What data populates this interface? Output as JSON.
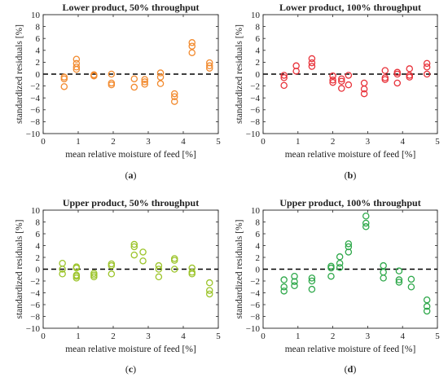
{
  "figure": {
    "panels": [
      {
        "id": "a",
        "title": "Lower product, 50% throughput",
        "caption_label": "a",
        "color": "#f28a2e"
      },
      {
        "id": "b",
        "title": "Lower product, 100% throughput",
        "caption_label": "b",
        "color": "#e8323a"
      },
      {
        "id": "c",
        "title": "Upper product, 50% throughput",
        "caption_label": "c",
        "color": "#9cc42a"
      },
      {
        "id": "d",
        "title": "Upper product, 100% throughput",
        "caption_label": "d",
        "color": "#2ea84a"
      }
    ]
  },
  "chart_data": [
    {
      "type": "scatter",
      "title": "Lower product, 50% throughput",
      "xlabel": "mean relative moisture of feed [%]",
      "ylabel": "standardized residuals [%]",
      "xlim": [
        0,
        5
      ],
      "ylim": [
        -10,
        10
      ],
      "xticks": [
        0,
        1,
        2,
        3,
        4,
        5
      ],
      "yticks": [
        -10,
        -8,
        -6,
        -4,
        -2,
        0,
        2,
        4,
        6,
        8,
        10
      ],
      "reference_line": 0,
      "grid": false,
      "marker": "open-circle",
      "color": "#f28a2e",
      "points": [
        [
          0.6,
          -0.5
        ],
        [
          0.6,
          -0.8
        ],
        [
          0.6,
          -2.1
        ],
        [
          0.95,
          2.5
        ],
        [
          0.95,
          1.8
        ],
        [
          0.95,
          1.2
        ],
        [
          0.95,
          0.8
        ],
        [
          1.45,
          -0.1
        ],
        [
          1.45,
          -0.2
        ],
        [
          1.45,
          -0.3
        ],
        [
          1.95,
          0.0
        ],
        [
          1.95,
          -1.5
        ],
        [
          1.95,
          -1.8
        ],
        [
          2.6,
          -0.8
        ],
        [
          2.6,
          -2.2
        ],
        [
          2.9,
          -0.9
        ],
        [
          2.9,
          -1.3
        ],
        [
          2.9,
          -1.7
        ],
        [
          3.35,
          0.2
        ],
        [
          3.35,
          -0.5
        ],
        [
          3.35,
          -1.6
        ],
        [
          3.75,
          -3.3
        ],
        [
          3.75,
          -3.8
        ],
        [
          3.75,
          -4.6
        ],
        [
          4.25,
          5.3
        ],
        [
          4.25,
          4.7
        ],
        [
          4.25,
          3.6
        ],
        [
          4.75,
          1.9
        ],
        [
          4.75,
          1.4
        ],
        [
          4.75,
          1.0
        ]
      ]
    },
    {
      "type": "scatter",
      "title": "Lower product, 100% throughput",
      "xlabel": "mean relative moisture of feed [%]",
      "ylabel": "standardized residuals [%]",
      "xlim": [
        0,
        5
      ],
      "ylim": [
        -10,
        10
      ],
      "xticks": [
        0,
        1,
        2,
        3,
        4,
        5
      ],
      "yticks": [
        -10,
        -8,
        -6,
        -4,
        -2,
        0,
        2,
        4,
        6,
        8,
        10
      ],
      "reference_line": 0,
      "grid": false,
      "marker": "open-circle",
      "color": "#e8323a",
      "points": [
        [
          0.6,
          -0.2
        ],
        [
          0.6,
          -0.6
        ],
        [
          0.6,
          -1.9
        ],
        [
          0.95,
          1.4
        ],
        [
          0.95,
          0.5
        ],
        [
          1.4,
          2.6
        ],
        [
          1.4,
          1.9
        ],
        [
          1.4,
          1.3
        ],
        [
          2.0,
          -0.3
        ],
        [
          2.0,
          -1.0
        ],
        [
          2.0,
          -1.4
        ],
        [
          2.25,
          -0.8
        ],
        [
          2.25,
          -1.2
        ],
        [
          2.25,
          -2.4
        ],
        [
          2.45,
          -0.2
        ],
        [
          2.45,
          -1.8
        ],
        [
          2.9,
          -1.5
        ],
        [
          2.9,
          -2.5
        ],
        [
          2.9,
          -3.3
        ],
        [
          3.5,
          0.6
        ],
        [
          3.5,
          -0.6
        ],
        [
          3.5,
          -0.9
        ],
        [
          3.85,
          0.3
        ],
        [
          3.85,
          0.0
        ],
        [
          3.85,
          -1.5
        ],
        [
          4.2,
          0.9
        ],
        [
          4.2,
          -0.2
        ],
        [
          4.2,
          -0.5
        ],
        [
          4.7,
          1.8
        ],
        [
          4.7,
          1.2
        ],
        [
          4.7,
          0.0
        ]
      ]
    },
    {
      "type": "scatter",
      "title": "Upper product, 50% throughput",
      "xlabel": "mean relative moisture of feed [%]",
      "ylabel": "standardized residuals [%]",
      "xlim": [
        0,
        5
      ],
      "ylim": [
        -10,
        10
      ],
      "xticks": [
        0,
        1,
        2,
        3,
        4,
        5
      ],
      "yticks": [
        -10,
        -8,
        -6,
        -4,
        -2,
        0,
        2,
        4,
        6,
        8,
        10
      ],
      "reference_line": 0,
      "grid": false,
      "marker": "open-circle",
      "color": "#9cc42a",
      "points": [
        [
          0.55,
          1.0
        ],
        [
          0.55,
          0.0
        ],
        [
          0.55,
          -0.8
        ],
        [
          0.95,
          0.4
        ],
        [
          0.95,
          0.2
        ],
        [
          0.95,
          -1.0
        ],
        [
          0.95,
          -1.2
        ],
        [
          0.95,
          -1.5
        ],
        [
          1.45,
          -0.7
        ],
        [
          1.45,
          -1.0
        ],
        [
          1.45,
          -1.3
        ],
        [
          1.95,
          0.9
        ],
        [
          1.95,
          0.6
        ],
        [
          1.95,
          -0.8
        ],
        [
          2.6,
          4.2
        ],
        [
          2.6,
          3.8
        ],
        [
          2.6,
          2.4
        ],
        [
          2.85,
          2.9
        ],
        [
          2.85,
          1.4
        ],
        [
          3.3,
          0.6
        ],
        [
          3.3,
          0.0
        ],
        [
          3.3,
          -1.3
        ],
        [
          3.75,
          1.8
        ],
        [
          3.75,
          1.5
        ],
        [
          3.75,
          0.0
        ],
        [
          4.25,
          0.2
        ],
        [
          4.25,
          -0.5
        ],
        [
          4.25,
          -0.8
        ],
        [
          4.75,
          -2.3
        ],
        [
          4.75,
          -3.6
        ],
        [
          4.75,
          -4.2
        ]
      ]
    },
    {
      "type": "scatter",
      "title": "Upper product, 100% throughput",
      "xlabel": "mean relative moisture of feed [%]",
      "ylabel": "standardized residuals [%]",
      "xlim": [
        0,
        5
      ],
      "ylim": [
        -10,
        10
      ],
      "xticks": [
        0,
        1,
        2,
        3,
        4,
        5
      ],
      "yticks": [
        -10,
        -8,
        -6,
        -4,
        -2,
        0,
        2,
        4,
        6,
        8,
        10
      ],
      "reference_line": 0,
      "grid": false,
      "marker": "open-circle",
      "color": "#2ea84a",
      "points": [
        [
          0.6,
          -1.8
        ],
        [
          0.6,
          -3.0
        ],
        [
          0.6,
          -3.7
        ],
        [
          0.9,
          -1.2
        ],
        [
          0.9,
          -2.1
        ],
        [
          0.9,
          -2.8
        ],
        [
          1.4,
          -1.5
        ],
        [
          1.4,
          -2.0
        ],
        [
          1.4,
          -3.4
        ],
        [
          1.95,
          0.5
        ],
        [
          1.95,
          0.2
        ],
        [
          1.95,
          -1.2
        ],
        [
          2.2,
          2.1
        ],
        [
          2.2,
          1.0
        ],
        [
          2.2,
          0.3
        ],
        [
          2.45,
          4.3
        ],
        [
          2.45,
          3.8
        ],
        [
          2.45,
          2.9
        ],
        [
          2.95,
          9.0
        ],
        [
          2.95,
          7.8
        ],
        [
          2.95,
          7.2
        ],
        [
          3.45,
          0.6
        ],
        [
          3.45,
          -0.5
        ],
        [
          3.45,
          -1.5
        ],
        [
          3.9,
          -0.3
        ],
        [
          3.9,
          -1.8
        ],
        [
          3.9,
          -2.2
        ],
        [
          4.25,
          -1.7
        ],
        [
          4.25,
          -3.0
        ],
        [
          4.7,
          -5.2
        ],
        [
          4.7,
          -6.3
        ],
        [
          4.7,
          -7.1
        ]
      ]
    }
  ]
}
